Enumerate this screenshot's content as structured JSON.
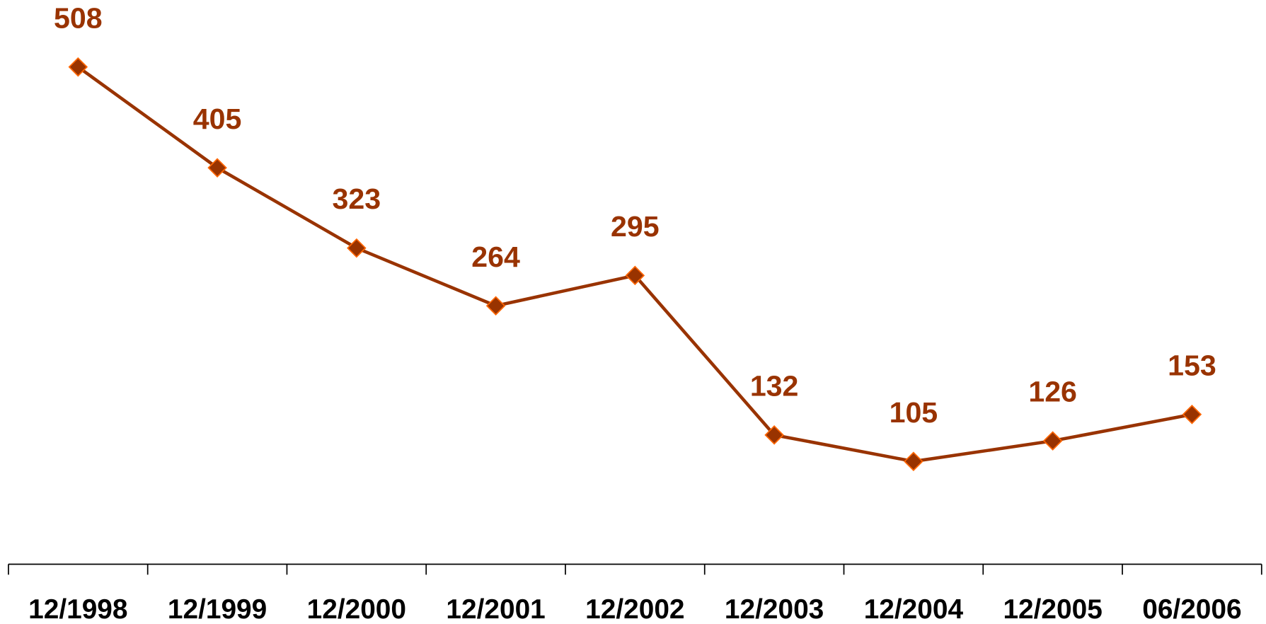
{
  "chart_data": {
    "type": "line",
    "categories": [
      "12/1998",
      "12/1999",
      "12/2000",
      "12/2001",
      "12/2002",
      "12/2003",
      "12/2004",
      "12/2005",
      "06/2006"
    ],
    "values": [
      508,
      405,
      323,
      264,
      295,
      132,
      105,
      126,
      153
    ],
    "color": "#993300",
    "marker_edge_color": "#ff6600",
    "ylim": [
      0,
      550
    ]
  }
}
